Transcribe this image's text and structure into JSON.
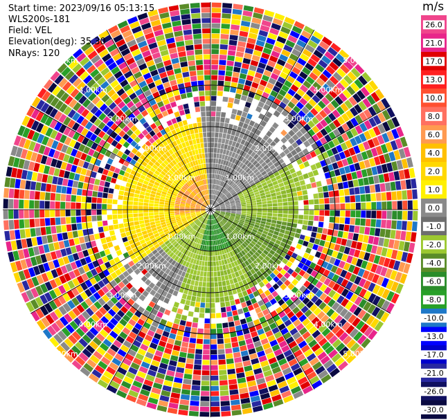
{
  "info": {
    "start_time": "Start time: 2023/09/16 05:13:15",
    "station": "WLS200s-181",
    "field": "Field: VEL",
    "elevation": "Elevation(deg): 35.30",
    "nrays": "NRays: 120"
  },
  "colorbar": {
    "unit": "m/s",
    "ticks": [
      "26.0",
      "21.0",
      "17.0",
      "13.0",
      "10.0",
      "8.0",
      "6.0",
      "4.0",
      "2.0",
      "1.0",
      "0.0",
      "-1.0",
      "-2.0",
      "-4.0",
      "-6.0",
      "-8.0",
      "-10.0",
      "-13.0",
      "-17.0",
      "-21.0",
      "-26.0",
      "-30.0"
    ],
    "colors": [
      "#f0458c",
      "#e8258a",
      "#e00000",
      "#ff2020",
      "#ff5030",
      "#ff7060",
      "#ff9a50",
      "#ffc000",
      "#ffd800",
      "#fff000",
      "#8a8a8a",
      "#6e6e6e",
      "#9cc830",
      "#5a8c28",
      "#2a8c2a",
      "#28a028",
      "#1e78c8",
      "#0000ff",
      "#0000cc",
      "#2828a0",
      "#101060",
      "#0a0a40"
    ]
  },
  "chart_data": {
    "type": "heatmap",
    "projection": "polar PPI",
    "field": "VEL",
    "unit": "m/s",
    "nrays": 120,
    "range_rings_km": [
      1.0,
      2.0,
      3.0
    ],
    "ring_label_text": "km",
    "max_range_km": 5.0,
    "pattern": "Positive velocities (yellow/orange, 0-6 m/s) to the west and north-west within about 3 km; negative velocities (grey/green, 0 to -6 m/s) to the south and east; noisy multicolored returns beyond about 3 km."
  }
}
